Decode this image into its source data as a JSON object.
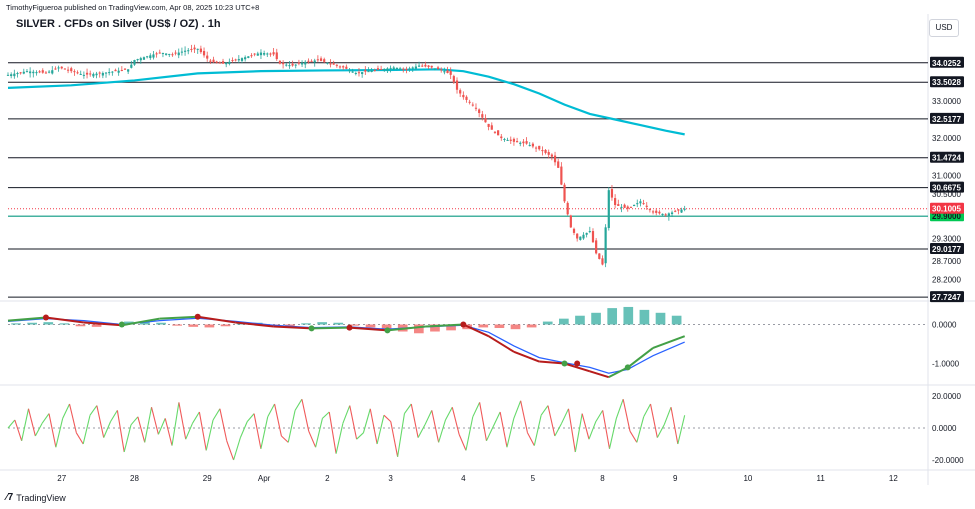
{
  "header": {
    "publisher": "TimothyFigueroa published on TradingView.com, Apr 08, 2025 10:23 UTC+8",
    "title": "SILVER . CFDs on Silver (US$ / OZ) . 1h",
    "currency_button": "USD",
    "footer_logo": "TradingView"
  },
  "colors": {
    "up": "#26a69a",
    "down": "#ef5350",
    "ma": "#00bcd4",
    "level_line": "#131722",
    "support_green": "#00c853",
    "price_tag": "#f23645",
    "support_tag": "#089981"
  },
  "chart_data": [
    {
      "type": "candlestick",
      "title": "SILVER . CFDs on Silver (US$ / OZ) . 1h",
      "x_ticks": [
        "27",
        "28",
        "29",
        "Apr",
        "2",
        "3",
        "4",
        "5",
        "8",
        "9",
        "10",
        "11",
        "12"
      ],
      "y_ticks": [
        "33.0000",
        "32.0000",
        "31.0000",
        "30.5000",
        "29.3000",
        "28.7000",
        "28.2000"
      ],
      "ylim": [
        27.7,
        34.1
      ],
      "horizontal_levels": [
        {
          "label": "34.0252",
          "value": 34.0252,
          "color": "#131722"
        },
        {
          "label": "33.5028",
          "value": 33.5028,
          "color": "#131722"
        },
        {
          "label": "32.5177",
          "value": 32.5177,
          "color": "#131722"
        },
        {
          "label": "31.4724",
          "value": 31.4724,
          "color": "#131722"
        },
        {
          "label": "30.6675",
          "value": 30.6675,
          "color": "#131722"
        },
        {
          "label": "29.9000",
          "value": 29.9,
          "color": "#089981"
        },
        {
          "label": "29.0177",
          "value": 29.0177,
          "color": "#131722"
        },
        {
          "label": "27.7247",
          "value": 27.7247,
          "color": "#131722"
        }
      ],
      "current_price": {
        "label": "30.1005",
        "value": 30.1005
      },
      "close_path": [
        [
          0,
          33.7
        ],
        [
          3,
          33.8
        ],
        [
          6,
          33.75
        ],
        [
          8,
          33.9
        ],
        [
          10,
          33.8
        ],
        [
          12,
          33.7
        ],
        [
          15,
          33.75
        ],
        [
          17,
          33.8
        ],
        [
          19,
          33.85
        ],
        [
          20,
          34.1
        ],
        [
          22,
          34.2
        ],
        [
          24,
          34.3
        ],
        [
          26,
          34.25
        ],
        [
          28,
          34.35
        ],
        [
          30,
          34.4
        ],
        [
          32,
          34.05
        ],
        [
          34,
          34.0
        ],
        [
          36,
          34.1
        ],
        [
          38,
          34.2
        ],
        [
          40,
          34.3
        ],
        [
          42,
          34.25
        ],
        [
          43,
          34.0
        ],
        [
          45,
          33.95
        ],
        [
          47,
          34.05
        ],
        [
          49,
          34.1
        ],
        [
          51,
          34.0
        ],
        [
          53,
          33.9
        ],
        [
          55,
          33.75
        ],
        [
          57,
          33.8
        ],
        [
          59,
          33.85
        ],
        [
          61,
          33.9
        ],
        [
          63,
          33.85
        ],
        [
          65,
          33.95
        ],
        [
          67,
          33.9
        ],
        [
          69,
          33.8
        ],
        [
          70,
          33.7
        ],
        [
          71,
          33.3
        ],
        [
          72,
          33.1
        ],
        [
          74,
          32.8
        ],
        [
          76,
          32.3
        ],
        [
          78,
          32.0
        ],
        [
          80,
          31.9
        ],
        [
          82,
          31.85
        ],
        [
          84,
          31.7
        ],
        [
          86,
          31.5
        ],
        [
          87,
          31.2
        ],
        [
          88,
          30.3
        ],
        [
          89,
          29.6
        ],
        [
          90,
          29.3
        ],
        [
          91,
          29.4
        ],
        [
          92,
          29.5
        ],
        [
          93,
          28.9
        ],
        [
          94,
          28.6
        ],
        [
          95,
          30.6
        ],
        [
          96,
          30.2
        ],
        [
          98,
          30.1
        ],
        [
          100,
          30.3
        ],
        [
          102,
          30.0
        ],
        [
          104,
          29.95
        ],
        [
          106,
          30.05
        ],
        [
          107,
          30.1
        ]
      ],
      "moving_average": [
        [
          0,
          33.35
        ],
        [
          10,
          33.42
        ],
        [
          20,
          33.55
        ],
        [
          30,
          33.74
        ],
        [
          40,
          33.8
        ],
        [
          50,
          33.82
        ],
        [
          60,
          33.83
        ],
        [
          68,
          33.85
        ],
        [
          72,
          33.8
        ],
        [
          76,
          33.65
        ],
        [
          80,
          33.45
        ],
        [
          84,
          33.2
        ],
        [
          88,
          32.9
        ],
        [
          92,
          32.65
        ],
        [
          96,
          32.5
        ],
        [
          100,
          32.35
        ],
        [
          104,
          32.2
        ],
        [
          107,
          32.1
        ]
      ],
      "x_range": [
        0,
        145
      ]
    },
    {
      "type": "line",
      "y_ticks": [
        "0.0000",
        "-1.0000"
      ],
      "ylim": [
        -1.5,
        0.5
      ],
      "series": [
        {
          "values": [
            [
              0,
              0.1
            ],
            [
              6,
              0.18
            ],
            [
              12,
              0.05
            ],
            [
              18,
              -0.02
            ],
            [
              24,
              0.15
            ],
            [
              30,
              0.2
            ],
            [
              36,
              0.05
            ],
            [
              42,
              -0.05
            ],
            [
              48,
              -0.1
            ],
            [
              54,
              -0.08
            ],
            [
              60,
              -0.15
            ],
            [
              66,
              -0.05
            ],
            [
              72,
              0.0
            ],
            [
              76,
              -0.3
            ],
            [
              80,
              -0.7
            ],
            [
              84,
              -0.95
            ],
            [
              88,
              -1.0
            ],
            [
              92,
              -1.2
            ],
            [
              95,
              -1.35
            ],
            [
              98,
              -1.1
            ],
            [
              102,
              -0.6
            ],
            [
              107,
              -0.3
            ]
          ]
        },
        {
          "values": [
            [
              0,
              0.08
            ],
            [
              6,
              0.15
            ],
            [
              12,
              0.1
            ],
            [
              18,
              0.0
            ],
            [
              24,
              0.1
            ],
            [
              30,
              0.16
            ],
            [
              36,
              0.08
            ],
            [
              42,
              -0.02
            ],
            [
              48,
              -0.08
            ],
            [
              54,
              -0.06
            ],
            [
              60,
              -0.12
            ],
            [
              66,
              -0.06
            ],
            [
              72,
              -0.02
            ],
            [
              76,
              -0.2
            ],
            [
              80,
              -0.55
            ],
            [
              84,
              -0.85
            ],
            [
              88,
              -0.98
            ],
            [
              92,
              -1.1
            ],
            [
              95,
              -1.25
            ],
            [
              98,
              -1.15
            ],
            [
              102,
              -0.8
            ],
            [
              107,
              -0.45
            ]
          ]
        }
      ],
      "histogram": [
        0.02,
        0.03,
        0.04,
        0.02,
        -0.03,
        -0.04,
        0.02,
        0.05,
        0.04,
        0.03,
        -0.02,
        -0.04,
        -0.05,
        -0.03,
        0.02,
        0.03,
        -0.02,
        -0.03,
        0.02,
        0.04,
        0.03,
        -0.02,
        -0.05,
        -0.08,
        -0.12,
        -0.15,
        -0.12,
        -0.1,
        -0.08,
        -0.05,
        -0.06,
        -0.08,
        -0.05,
        0.05,
        0.1,
        0.15,
        0.2,
        0.28,
        0.3,
        0.25,
        0.2,
        0.15
      ]
    },
    {
      "type": "line",
      "y_ticks": [
        "20.0000",
        "0.0000",
        "-20.0000"
      ],
      "ylim": [
        -25,
        25
      ],
      "series": [
        {
          "values": [
            0,
            5,
            -8,
            12,
            -5,
            3,
            9,
            -12,
            6,
            15,
            -3,
            -10,
            8,
            14,
            -6,
            4,
            11,
            -15,
            2,
            7,
            -9,
            13,
            -4,
            6,
            -11,
            16,
            -7,
            3,
            10,
            -14,
            5,
            12,
            -8,
            -20,
            -6,
            4,
            9,
            -13,
            7,
            15,
            -5,
            -9,
            11,
            18,
            -2,
            -12,
            6,
            10,
            -16,
            3,
            14,
            -7,
            -3,
            12,
            -10,
            8,
            4,
            -18,
            9,
            15,
            -6,
            2,
            11,
            -9,
            5,
            13,
            -4,
            -14,
            7,
            16,
            -8,
            1,
            10,
            -12,
            6,
            17,
            -3,
            -11,
            8,
            14,
            -5,
            3,
            12,
            -15,
            9,
            -7,
            4,
            11,
            -13,
            6,
            18,
            -2,
            -9,
            7,
            15,
            -6,
            2,
            13,
            -10,
            8
          ]
        }
      ]
    }
  ]
}
